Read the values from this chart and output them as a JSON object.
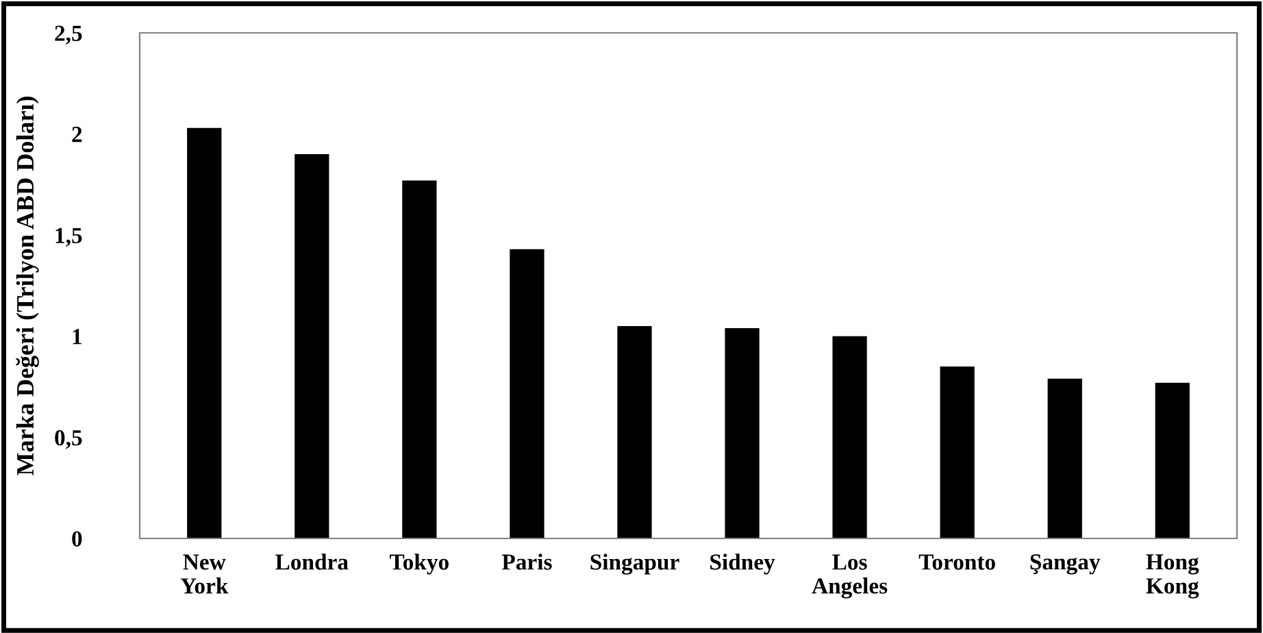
{
  "chart_data": {
    "type": "bar",
    "ylabel": "Marka Değeri (Trilyon ABD Doları)",
    "categories": [
      "New York",
      "Londra",
      "Tokyo",
      "Paris",
      "Singapur",
      "Sidney",
      "Los Angeles",
      "Toronto",
      "Şangay",
      "Hong Kong"
    ],
    "values": [
      2.03,
      1.9,
      1.77,
      1.43,
      1.05,
      1.04,
      1.0,
      0.85,
      0.79,
      0.77
    ],
    "color": "#000000",
    "ylim": [
      0,
      2.5
    ],
    "yticks": [
      0,
      {
        "value": 0.5,
        "label": "0,5"
      },
      1,
      {
        "value": 1.5,
        "label": "1,5"
      },
      2,
      {
        "value": 2.5,
        "label": "2,5"
      }
    ],
    "grid": false,
    "legend": false
  }
}
